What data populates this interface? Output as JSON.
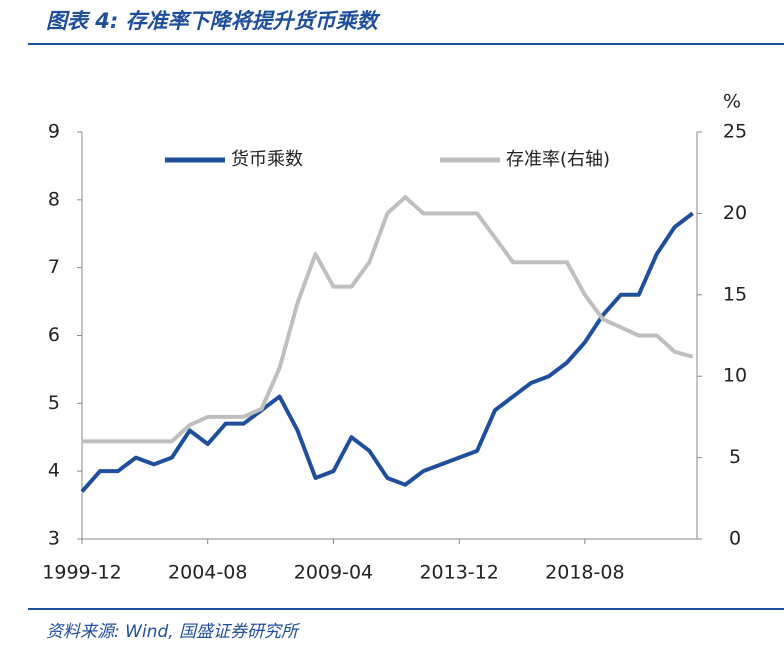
{
  "chart_data": {
    "type": "line",
    "title": "图表 4:  存准率下降将提升货币乘数",
    "source": "资料来源:  Wind,  国盛证券研究所",
    "y2_unit": "%",
    "x": [
      "1999-12",
      "2000-08",
      "2001-04",
      "2001-12",
      "2002-08",
      "2003-04",
      "2003-12",
      "2004-08",
      "2005-04",
      "2005-12",
      "2006-08",
      "2007-04",
      "2007-12",
      "2008-08",
      "2009-04",
      "2009-12",
      "2010-08",
      "2011-04",
      "2011-12",
      "2012-08",
      "2013-04",
      "2013-12",
      "2014-08",
      "2015-04",
      "2015-12",
      "2016-08",
      "2017-04",
      "2017-12",
      "2018-08",
      "2019-04",
      "2019-12",
      "2020-08",
      "2021-04",
      "2021-12",
      "2022-08"
    ],
    "xticks": [
      "1999-12",
      "2004-08",
      "2009-04",
      "2013-12",
      "2018-08"
    ],
    "series": [
      {
        "name": "货币乘数",
        "color": "#1f4e9c",
        "axis": "y",
        "values": [
          3.7,
          4.0,
          4.0,
          4.2,
          4.1,
          4.2,
          4.6,
          4.4,
          4.7,
          4.7,
          4.9,
          5.1,
          4.6,
          3.9,
          4.0,
          4.5,
          4.3,
          3.9,
          3.8,
          4.0,
          4.1,
          4.2,
          4.3,
          4.9,
          5.1,
          5.3,
          5.4,
          5.6,
          5.9,
          6.3,
          6.6,
          6.6,
          7.2,
          7.6,
          7.8
        ]
      },
      {
        "name": "存准率(右轴)",
        "color": "#bfbfbf",
        "axis": "y2",
        "values": [
          6,
          6,
          6,
          6,
          6,
          6,
          7,
          7.5,
          7.5,
          7.5,
          8,
          10.5,
          14.5,
          17.5,
          15.5,
          15.5,
          17,
          20,
          21,
          20,
          20,
          20,
          20,
          18.5,
          17,
          17,
          17,
          17,
          15,
          13.5,
          13,
          12.5,
          12.5,
          11.5,
          11.2
        ]
      }
    ],
    "ylim": [
      3,
      9
    ],
    "yticks": [
      3,
      4,
      5,
      6,
      7,
      8,
      9
    ],
    "y2lim": [
      0,
      25
    ],
    "y2ticks": [
      0,
      5,
      10,
      15,
      20,
      25
    ]
  }
}
